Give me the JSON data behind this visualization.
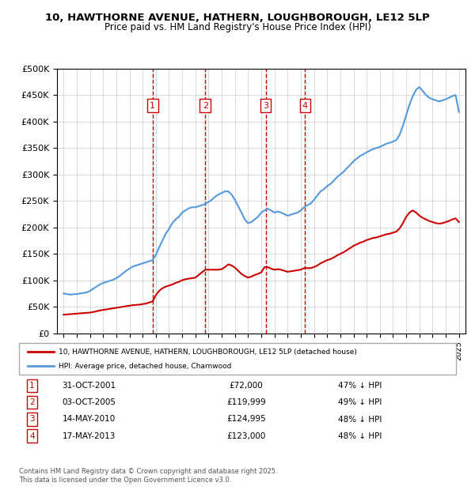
{
  "title_line1": "10, HAWTHORNE AVENUE, HATHERN, LOUGHBOROUGH, LE12 5LP",
  "title_line2": "Price paid vs. HM Land Registry's House Price Index (HPI)",
  "ylabel": "",
  "xlabel": "",
  "background_color": "#ffffff",
  "plot_bg_color": "#ffffff",
  "grid_color": "#cccccc",
  "hpi_line_color": "#5599dd",
  "price_line_color": "#cc0000",
  "sale_vline_color": "#cc0000",
  "sale_bg_color": "#ddeeff",
  "ylim": [
    0,
    500000
  ],
  "yticks": [
    0,
    50000,
    100000,
    150000,
    200000,
    250000,
    300000,
    350000,
    400000,
    450000,
    500000
  ],
  "ytick_labels": [
    "£0",
    "£50K",
    "£100K",
    "£150K",
    "£200K",
    "£250K",
    "£300K",
    "£350K",
    "£400K",
    "£450K",
    "£500K"
  ],
  "sales": [
    {
      "num": 1,
      "date": "2001-10-31",
      "price": 72000,
      "label": "31-OCT-2001",
      "price_label": "£72,000",
      "pct": "47% ↓ HPI"
    },
    {
      "num": 2,
      "date": "2005-10-03",
      "price": 119999,
      "label": "03-OCT-2005",
      "price_label": "£119,999",
      "pct": "49% ↓ HPI"
    },
    {
      "num": 3,
      "date": "2010-05-14",
      "price": 124995,
      "label": "14-MAY-2010",
      "price_label": "£124,995",
      "pct": "48% ↓ HPI"
    },
    {
      "num": 4,
      "date": "2013-05-17",
      "price": 123000,
      "label": "17-MAY-2013",
      "price_label": "£123,000",
      "pct": "48% ↓ HPI"
    }
  ],
  "legend_line1": "10, HAWTHORNE AVENUE, HATHERN, LOUGHBOROUGH, LE12 5LP (detached house)",
  "legend_line2": "HPI: Average price, detached house, Charnwood",
  "footer": "Contains HM Land Registry data © Crown copyright and database right 2025.\nThis data is licensed under the Open Government Licence v3.0.",
  "hpi_data_x": [
    1995.0,
    1995.25,
    1995.5,
    1995.75,
    1996.0,
    1996.25,
    1996.5,
    1996.75,
    1997.0,
    1997.25,
    1997.5,
    1997.75,
    1998.0,
    1998.25,
    1998.5,
    1998.75,
    1999.0,
    1999.25,
    1999.5,
    1999.75,
    2000.0,
    2000.25,
    2000.5,
    2000.75,
    2001.0,
    2001.25,
    2001.5,
    2001.75,
    2002.0,
    2002.25,
    2002.5,
    2002.75,
    2003.0,
    2003.25,
    2003.5,
    2003.75,
    2004.0,
    2004.25,
    2004.5,
    2004.75,
    2005.0,
    2005.25,
    2005.5,
    2005.75,
    2006.0,
    2006.25,
    2006.5,
    2006.75,
    2007.0,
    2007.25,
    2007.5,
    2007.75,
    2008.0,
    2008.25,
    2008.5,
    2008.75,
    2009.0,
    2009.25,
    2009.5,
    2009.75,
    2010.0,
    2010.25,
    2010.5,
    2010.75,
    2011.0,
    2011.25,
    2011.5,
    2011.75,
    2012.0,
    2012.25,
    2012.5,
    2012.75,
    2013.0,
    2013.25,
    2013.5,
    2013.75,
    2014.0,
    2014.25,
    2014.5,
    2014.75,
    2015.0,
    2015.25,
    2015.5,
    2015.75,
    2016.0,
    2016.25,
    2016.5,
    2016.75,
    2017.0,
    2017.25,
    2017.5,
    2017.75,
    2018.0,
    2018.25,
    2018.5,
    2018.75,
    2019.0,
    2019.25,
    2019.5,
    2019.75,
    2020.0,
    2020.25,
    2020.5,
    2020.75,
    2021.0,
    2021.25,
    2021.5,
    2021.75,
    2022.0,
    2022.25,
    2022.5,
    2022.75,
    2023.0,
    2023.25,
    2023.5,
    2023.75,
    2024.0,
    2024.25,
    2024.5,
    2024.75,
    2025.0
  ],
  "hpi_data_y": [
    75000,
    74000,
    73000,
    73500,
    74000,
    75000,
    76000,
    77000,
    80000,
    84000,
    88000,
    92000,
    95000,
    97000,
    99000,
    101000,
    104000,
    108000,
    113000,
    118000,
    122000,
    126000,
    128000,
    130000,
    132000,
    134000,
    136000,
    138000,
    148000,
    162000,
    175000,
    188000,
    197000,
    208000,
    215000,
    220000,
    228000,
    232000,
    236000,
    238000,
    238000,
    240000,
    242000,
    244000,
    248000,
    252000,
    258000,
    262000,
    265000,
    268000,
    268000,
    262000,
    252000,
    240000,
    228000,
    215000,
    208000,
    210000,
    215000,
    220000,
    228000,
    232000,
    235000,
    232000,
    228000,
    230000,
    228000,
    225000,
    222000,
    224000,
    226000,
    228000,
    232000,
    238000,
    242000,
    245000,
    252000,
    260000,
    268000,
    272000,
    278000,
    282000,
    288000,
    295000,
    300000,
    305000,
    312000,
    318000,
    325000,
    330000,
    335000,
    338000,
    342000,
    345000,
    348000,
    350000,
    352000,
    355000,
    358000,
    360000,
    362000,
    365000,
    375000,
    392000,
    412000,
    432000,
    448000,
    460000,
    465000,
    458000,
    450000,
    445000,
    442000,
    440000,
    438000,
    440000,
    442000,
    445000,
    448000,
    450000,
    418000
  ],
  "price_data_x": [
    1995.0,
    1995.25,
    1995.5,
    1995.75,
    1996.0,
    1996.25,
    1996.5,
    1996.75,
    1997.0,
    1997.25,
    1997.5,
    1997.75,
    1998.0,
    1998.25,
    1998.5,
    1998.75,
    1999.0,
    1999.25,
    1999.5,
    1999.75,
    2000.0,
    2000.25,
    2000.5,
    2000.75,
    2001.0,
    2001.25,
    2001.5,
    2001.75,
    2002.0,
    2002.25,
    2002.5,
    2002.75,
    2003.0,
    2003.25,
    2003.5,
    2003.75,
    2004.0,
    2004.25,
    2004.5,
    2004.75,
    2005.0,
    2005.25,
    2005.5,
    2005.75,
    2006.0,
    2006.25,
    2006.5,
    2006.75,
    2007.0,
    2007.25,
    2007.5,
    2007.75,
    2008.0,
    2008.25,
    2008.5,
    2008.75,
    2009.0,
    2009.25,
    2009.5,
    2009.75,
    2010.0,
    2010.25,
    2010.5,
    2010.75,
    2011.0,
    2011.25,
    2011.5,
    2011.75,
    2012.0,
    2012.25,
    2012.5,
    2012.75,
    2013.0,
    2013.25,
    2013.5,
    2013.75,
    2014.0,
    2014.25,
    2014.5,
    2014.75,
    2015.0,
    2015.25,
    2015.5,
    2015.75,
    2016.0,
    2016.25,
    2016.5,
    2016.75,
    2017.0,
    2017.25,
    2017.5,
    2017.75,
    2018.0,
    2018.25,
    2018.5,
    2018.75,
    2019.0,
    2019.25,
    2019.5,
    2019.75,
    2020.0,
    2020.25,
    2020.5,
    2020.75,
    2021.0,
    2021.25,
    2021.5,
    2021.75,
    2022.0,
    2022.25,
    2022.5,
    2022.75,
    2023.0,
    2023.25,
    2023.5,
    2023.75,
    2024.0,
    2024.25,
    2024.5,
    2024.75,
    2025.0
  ],
  "price_data_y": [
    35000,
    35500,
    36000,
    36500,
    37000,
    37500,
    38000,
    38500,
    39000,
    40000,
    41500,
    43000,
    44000,
    45000,
    46000,
    47000,
    48000,
    49000,
    50000,
    51000,
    52000,
    53000,
    53500,
    54000,
    55000,
    56000,
    58000,
    60000,
    72000,
    80000,
    85000,
    88000,
    90000,
    92000,
    95000,
    97000,
    100000,
    102000,
    103000,
    104000,
    105000,
    110000,
    115000,
    119999,
    119999,
    119999,
    119999,
    120000,
    121000,
    125000,
    130000,
    128000,
    124000,
    118000,
    112000,
    108000,
    105000,
    107000,
    110000,
    112000,
    115000,
    124995,
    124995,
    122000,
    120000,
    121000,
    120000,
    118000,
    116000,
    117000,
    118000,
    119000,
    120000,
    123000,
    123000,
    123000,
    125000,
    128000,
    132000,
    135000,
    138000,
    140000,
    143000,
    147000,
    150000,
    153000,
    157000,
    161000,
    165000,
    168000,
    171000,
    173000,
    176000,
    178000,
    180000,
    181000,
    183000,
    185000,
    187000,
    188000,
    190000,
    192000,
    198000,
    208000,
    220000,
    228000,
    232000,
    228000,
    222000,
    218000,
    215000,
    212000,
    210000,
    208000,
    207000,
    208000,
    210000,
    212000,
    215000,
    217000,
    210000
  ]
}
